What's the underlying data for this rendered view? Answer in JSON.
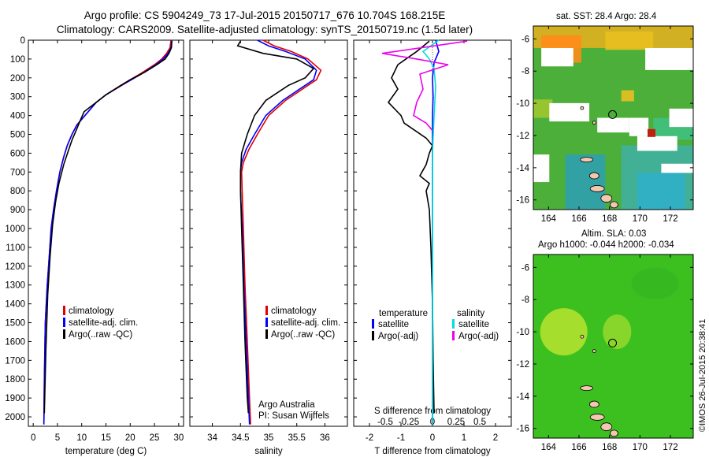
{
  "header": {
    "line1": "Argo profile: CS 5904249_73 17-Jul-2015 20150717_676 10.704S 168.215E",
    "line2": "Climatology: CARS2009. Satellite-adjusted climatology: synTS_20150719.nc (1.5d later)"
  },
  "colors": {
    "climatology": "#e00000",
    "satellite": "#0000ff",
    "argo": "#000000",
    "satellite_salinity": "#00dddd",
    "argo_salinity": "#ee00ee"
  },
  "chart_data": [
    {
      "type": "line",
      "id": "temperature",
      "xlabel": "temperature (deg C)",
      "xlim": [
        -1,
        31
      ],
      "xticks": [
        0,
        5,
        10,
        15,
        20,
        25,
        30
      ],
      "ylim": [
        2050,
        0
      ],
      "yticks": [
        0,
        100,
        200,
        300,
        400,
        500,
        600,
        700,
        800,
        900,
        1000,
        1100,
        1200,
        1300,
        1400,
        1500,
        1600,
        1700,
        1800,
        1900,
        2000
      ],
      "legend": [
        "climatology",
        "satellite-adj. clim.",
        "Argo(..raw -QC)"
      ],
      "series": [
        {
          "name": "climatology",
          "color": "#e00000",
          "x": [
            28.4,
            28.2,
            27.5,
            26.5,
            25,
            22,
            18,
            15,
            13,
            11,
            9,
            8,
            7,
            6.3,
            5.5,
            4.8,
            4.2,
            3.7,
            3.3,
            2.9,
            2.5,
            2.3,
            2.2
          ],
          "y": [
            0,
            40,
            70,
            100,
            130,
            180,
            240,
            290,
            330,
            390,
            450,
            500,
            560,
            620,
            700,
            800,
            900,
            1000,
            1150,
            1300,
            1500,
            1800,
            2040
          ]
        },
        {
          "name": "satellite-adj. clim.",
          "color": "#0000ff",
          "x": [
            28.6,
            28.4,
            27.8,
            26.8,
            25.3,
            22.3,
            18.2,
            15,
            13,
            11,
            9,
            8,
            7,
            6.3,
            5.5,
            4.8,
            4.2,
            3.7,
            3.3,
            2.9,
            2.5,
            2.3,
            2.2
          ],
          "y": [
            0,
            40,
            70,
            100,
            130,
            180,
            240,
            290,
            330,
            390,
            450,
            500,
            560,
            620,
            700,
            800,
            900,
            1000,
            1150,
            1300,
            1500,
            1800,
            2040
          ]
        },
        {
          "name": "Argo(..raw -QC)",
          "color": "#000000",
          "x": [
            28.6,
            28.5,
            28,
            27.2,
            25.5,
            23,
            20,
            17.5,
            15,
            12.5,
            10.5,
            9.8,
            9,
            8,
            7.2,
            6.3,
            5.3,
            4.6,
            4,
            3.5,
            3,
            2.6,
            2.3
          ],
          "y": [
            5,
            40,
            70,
            100,
            130,
            170,
            210,
            250,
            290,
            340,
            380,
            420,
            470,
            530,
            590,
            660,
            760,
            860,
            980,
            1140,
            1350,
            1650,
            1980
          ]
        }
      ]
    },
    {
      "type": "line",
      "id": "salinity",
      "xlabel": "salinity",
      "xlim": [
        33.6,
        36.4
      ],
      "xticks": [
        34,
        34.5,
        35,
        35.5,
        36
      ],
      "ylim": [
        2050,
        0
      ],
      "legend": [
        "climatology",
        "satellite-adj. clim.",
        "Argo(..raw -QC)"
      ],
      "notes": [
        "Argo Australia",
        "PI: Susan Wijffels"
      ],
      "series": [
        {
          "name": "climatology",
          "color": "#e00000",
          "x": [
            34.9,
            35.1,
            35.4,
            35.7,
            35.93,
            35.85,
            35.6,
            35.3,
            35.0,
            34.8,
            34.65,
            34.55,
            34.52,
            34.53,
            34.55,
            34.58,
            34.62,
            34.66,
            34.68
          ],
          "y": [
            0,
            30,
            60,
            100,
            160,
            210,
            260,
            320,
            400,
            500,
            580,
            650,
            700,
            800,
            1000,
            1300,
            1600,
            1900,
            2040
          ]
        },
        {
          "name": "satellite-adj. clim.",
          "color": "#0000ff",
          "x": [
            34.8,
            35.0,
            35.3,
            35.65,
            35.85,
            35.8,
            35.55,
            35.25,
            34.95,
            34.75,
            34.6,
            34.52,
            34.5,
            34.5,
            34.53,
            34.56,
            34.6,
            34.64,
            34.66
          ],
          "y": [
            0,
            30,
            60,
            100,
            160,
            210,
            260,
            320,
            400,
            500,
            580,
            650,
            700,
            800,
            1000,
            1300,
            1600,
            1900,
            2040
          ]
        },
        {
          "name": "Argo(..raw -QC)",
          "color": "#000000",
          "x": [
            34.5,
            34.45,
            34.9,
            35.5,
            35.8,
            35.65,
            35.35,
            35.15,
            34.95,
            34.75,
            34.62,
            34.52,
            34.5,
            34.5,
            34.52,
            34.55,
            34.58,
            34.62,
            34.64
          ],
          "y": [
            5,
            30,
            70,
            100,
            150,
            200,
            240,
            280,
            320,
            400,
            500,
            600,
            700,
            800,
            1000,
            1300,
            1600,
            1900,
            1980
          ]
        }
      ]
    },
    {
      "type": "line",
      "id": "difference",
      "xlabel_top": "S difference from climatology",
      "xlabel": "T difference from climatology",
      "xlim": [
        -2.5,
        2.5
      ],
      "xticks": [
        -2,
        -1,
        0,
        1,
        2
      ],
      "top_ticks": [
        {
          "v": -1.5,
          "label": "-0.5"
        },
        {
          "v": -0.75,
          "label": "-0.25"
        },
        {
          "v": 0,
          "label": "0"
        },
        {
          "v": 0.75,
          "label": "0.25"
        },
        {
          "v": 1.5,
          "label": "0.5"
        }
      ],
      "ylim": [
        2050,
        0
      ],
      "legend_temperature_title": "temperature",
      "legend_salinity_title": "salinity",
      "legend_temperature": [
        "satellite",
        "Argo(-adj)"
      ],
      "legend_salinity": [
        "satellite",
        "Argo(-adj)"
      ],
      "series": [
        {
          "name": "temperature satellite",
          "color": "#0000ff",
          "x": [
            0.1,
            0.2,
            0.05,
            0,
            0.02,
            0,
            0,
            0,
            0,
            0,
            0,
            0
          ],
          "y": [
            0,
            60,
            120,
            200,
            300,
            400,
            600,
            800,
            1000,
            1400,
            1800,
            2040
          ]
        },
        {
          "name": "temperature Argo(-adj)",
          "color": "#000000",
          "x": [
            -0.1,
            -0.5,
            -1.1,
            -1.3,
            -1.1,
            -1.4,
            -1,
            -0.9,
            -0.2,
            0,
            -0.1,
            -0.2,
            -0.4,
            -0.1,
            -0.2,
            -0.1,
            -0.05,
            0,
            0.02,
            0.05
          ],
          "y": [
            5,
            60,
            130,
            200,
            260,
            330,
            400,
            440,
            520,
            560,
            600,
            660,
            720,
            760,
            800,
            900,
            1100,
            1400,
            1700,
            1980
          ]
        },
        {
          "name": "salinity satellite",
          "color": "#00dddd",
          "x": [
            0.2,
            -0.3,
            -0.1,
            0.05,
            0.1,
            0.05,
            0,
            0,
            0,
            0
          ],
          "y": [
            0,
            60,
            100,
            150,
            250,
            400,
            600,
            900,
            1400,
            2040
          ]
        },
        {
          "name": "salinity Argo(-adj)",
          "color": "#ee00ee",
          "x": [
            1.1,
            -1.6,
            -0.5,
            0.5,
            -0.4,
            -0.3,
            -0.5,
            -0.6,
            -0.2,
            0
          ],
          "y": [
            5,
            70,
            100,
            130,
            180,
            260,
            330,
            400,
            440,
            480
          ]
        }
      ]
    }
  ],
  "maps": [
    {
      "id": "sst-map",
      "title": "sat. SST: 28.4 Argo: 28.4",
      "xticks": [
        164,
        166,
        168,
        170,
        172
      ],
      "yticks": [
        -6,
        -8,
        -10,
        -12,
        -14,
        -16
      ],
      "xlim": [
        163,
        173.5
      ],
      "ylim": [
        -16.6,
        -5.2
      ],
      "profile_location": [
        168.2,
        -10.7
      ]
    },
    {
      "id": "sla-map",
      "title_line1": "Altim. SLA: 0.03",
      "title_line2": "Argo h1000: -0.044 h2000: -0.034",
      "xticks": [
        164,
        166,
        168,
        170,
        172
      ],
      "yticks": [
        -6,
        -8,
        -10,
        -12,
        -14,
        -16
      ],
      "xlim": [
        163,
        173.5
      ],
      "ylim": [
        -16.6,
        -5.2
      ],
      "profile_location": [
        168.2,
        -10.7
      ]
    }
  ],
  "footer": {
    "credit": "©IMOS 26-Jul-2015 20:38:41"
  }
}
